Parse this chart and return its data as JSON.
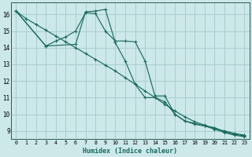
{
  "xlabel": "Humidex (Indice chaleur)",
  "background_color": "#cce8e8",
  "grid_color": "#aacece",
  "line_color": "#1a6b5e",
  "xlim": [
    -0.5,
    23.5
  ],
  "ylim": [
    8.5,
    16.7
  ],
  "yticks": [
    9,
    10,
    11,
    12,
    13,
    14,
    15,
    16
  ],
  "xticks": [
    0,
    1,
    2,
    3,
    4,
    5,
    6,
    7,
    8,
    9,
    10,
    11,
    12,
    13,
    14,
    15,
    16,
    17,
    18,
    19,
    20,
    21,
    22,
    23
  ],
  "series": [
    {
      "x": [
        0,
        1,
        2,
        3,
        4,
        5,
        6,
        7,
        8,
        9,
        10,
        11,
        12,
        13,
        14,
        15,
        16,
        17,
        18,
        19,
        20,
        21,
        22,
        23
      ],
      "y": [
        16.2,
        15.75,
        15.4,
        15.05,
        14.7,
        14.35,
        14.0,
        13.65,
        13.3,
        12.95,
        12.6,
        12.2,
        11.8,
        11.4,
        11.0,
        10.6,
        10.2,
        9.85,
        9.55,
        9.35,
        9.15,
        9.0,
        8.85,
        8.75
      ]
    },
    {
      "x": [
        0,
        3,
        4,
        5,
        6,
        7,
        8,
        9,
        10,
        11,
        12,
        13,
        14,
        15,
        16,
        17,
        18,
        19,
        20,
        21,
        22,
        23
      ],
      "y": [
        16.2,
        14.1,
        14.4,
        14.65,
        15.0,
        16.1,
        16.05,
        15.0,
        14.4,
        14.4,
        14.35,
        13.2,
        11.1,
        11.1,
        10.0,
        9.6,
        9.4,
        9.3,
        9.1,
        8.9,
        8.75,
        8.65
      ]
    },
    {
      "x": [
        0,
        3,
        6,
        7,
        8,
        9,
        10,
        11,
        12,
        13,
        14,
        15,
        16,
        17,
        18,
        19,
        20,
        21,
        22,
        23
      ],
      "y": [
        16.2,
        14.1,
        14.2,
        16.15,
        16.2,
        16.3,
        14.3,
        13.2,
        11.8,
        11.0,
        11.0,
        10.75,
        10.0,
        9.6,
        9.45,
        9.3,
        9.2,
        8.95,
        8.8,
        8.7
      ]
    }
  ]
}
